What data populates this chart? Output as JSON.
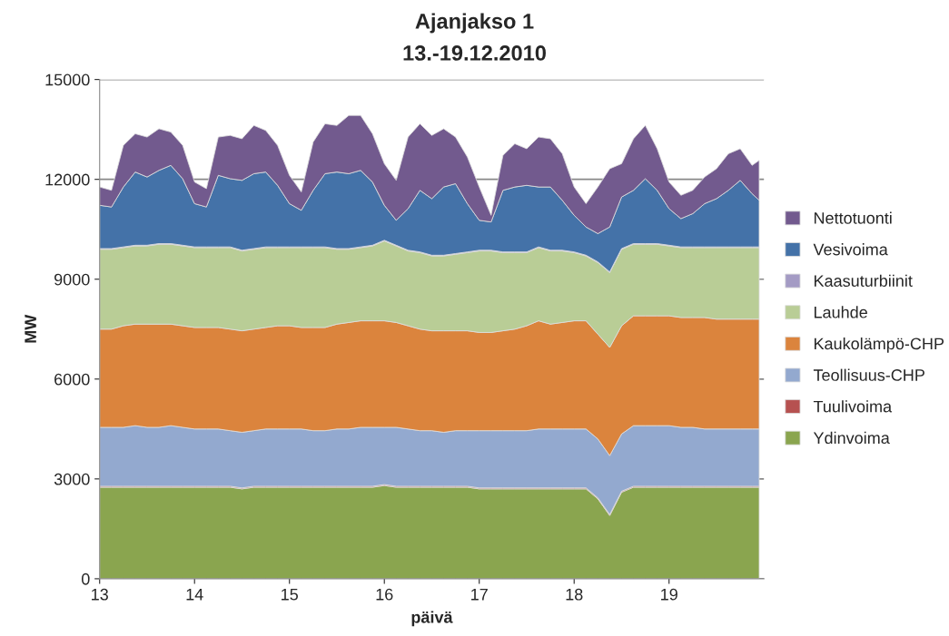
{
  "chart_data": {
    "type": "area",
    "stacked": true,
    "title": "Ajanjakso 1",
    "subtitle": "13.-19.12.2010",
    "xlabel": "päivä",
    "ylabel": "MW",
    "x": [
      13.0,
      13.125,
      13.25,
      13.375,
      13.5,
      13.625,
      13.75,
      13.875,
      14.0,
      14.125,
      14.25,
      14.375,
      14.5,
      14.625,
      14.75,
      14.875,
      15.0,
      15.125,
      15.25,
      15.375,
      15.5,
      15.625,
      15.75,
      15.875,
      16.0,
      16.125,
      16.25,
      16.375,
      16.5,
      16.625,
      16.75,
      16.875,
      17.0,
      17.125,
      17.25,
      17.375,
      17.5,
      17.625,
      17.75,
      17.875,
      18.0,
      18.125,
      18.25,
      18.375,
      18.5,
      18.625,
      18.75,
      18.875,
      19.0,
      19.125,
      19.25,
      19.375,
      19.5,
      19.625,
      19.75,
      19.875,
      19.95
    ],
    "series": [
      {
        "name": "Ydinvoima",
        "color": "#8aa54f",
        "values": [
          2750,
          2750,
          2750,
          2750,
          2750,
          2750,
          2750,
          2750,
          2750,
          2750,
          2750,
          2750,
          2700,
          2750,
          2750,
          2750,
          2750,
          2750,
          2750,
          2750,
          2750,
          2750,
          2750,
          2750,
          2800,
          2750,
          2750,
          2750,
          2750,
          2750,
          2750,
          2750,
          2700,
          2700,
          2700,
          2700,
          2700,
          2700,
          2700,
          2700,
          2700,
          2700,
          2400,
          1900,
          2600,
          2750,
          2750,
          2750,
          2750,
          2750,
          2750,
          2750,
          2750,
          2750,
          2750,
          2750,
          2750
        ]
      },
      {
        "name": "Tuulivoima",
        "color": "#b65150",
        "values": [
          30,
          30,
          30,
          30,
          30,
          30,
          30,
          30,
          30,
          30,
          30,
          30,
          30,
          30,
          30,
          30,
          30,
          30,
          30,
          30,
          30,
          30,
          30,
          30,
          30,
          30,
          30,
          30,
          30,
          30,
          30,
          30,
          30,
          30,
          30,
          30,
          30,
          30,
          30,
          30,
          30,
          30,
          30,
          30,
          30,
          30,
          30,
          30,
          30,
          30,
          30,
          30,
          30,
          30,
          30,
          30,
          30
        ]
      },
      {
        "name": "Teollisuus-CHP",
        "color": "#93a9cf",
        "values": [
          1770,
          1770,
          1770,
          1820,
          1770,
          1770,
          1820,
          1770,
          1720,
          1720,
          1720,
          1670,
          1670,
          1670,
          1720,
          1720,
          1720,
          1720,
          1670,
          1670,
          1720,
          1720,
          1770,
          1770,
          1720,
          1770,
          1720,
          1670,
          1670,
          1620,
          1670,
          1670,
          1720,
          1720,
          1720,
          1720,
          1720,
          1770,
          1770,
          1770,
          1770,
          1770,
          1770,
          1770,
          1720,
          1820,
          1820,
          1820,
          1820,
          1770,
          1770,
          1720,
          1720,
          1720,
          1720,
          1720,
          1720
        ]
      },
      {
        "name": "Kaukolämpö-CHP",
        "color": "#db843d",
        "values": [
          2950,
          2950,
          3050,
          3050,
          3100,
          3100,
          3050,
          3050,
          3050,
          3050,
          3050,
          3050,
          3050,
          3050,
          3050,
          3100,
          3100,
          3050,
          3100,
          3100,
          3150,
          3200,
          3200,
          3200,
          3200,
          3150,
          3100,
          3050,
          3000,
          3050,
          3000,
          3000,
          2950,
          2950,
          3000,
          3050,
          3150,
          3250,
          3150,
          3200,
          3250,
          3250,
          3150,
          3250,
          3250,
          3300,
          3300,
          3300,
          3300,
          3300,
          3300,
          3350,
          3300,
          3300,
          3300,
          3300,
          3300
        ]
      },
      {
        "name": "Lauhde",
        "color": "#b9cd96",
        "values": [
          2400,
          2400,
          2350,
          2350,
          2350,
          2400,
          2400,
          2400,
          2400,
          2400,
          2400,
          2450,
          2400,
          2400,
          2400,
          2350,
          2350,
          2400,
          2400,
          2400,
          2250,
          2200,
          2200,
          2250,
          2400,
          2300,
          2250,
          2300,
          2250,
          2250,
          2300,
          2350,
          2450,
          2450,
          2350,
          2300,
          2200,
          2200,
          2200,
          2150,
          2050,
          1950,
          2150,
          2250,
          2300,
          2150,
          2150,
          2150,
          2100,
          2100,
          2100,
          2100,
          2150,
          2150,
          2150,
          2150,
          2150
        ]
      },
      {
        "name": "Kaasuturbiinit",
        "color": "#a49bc4",
        "values": [
          20,
          20,
          20,
          20,
          20,
          20,
          20,
          20,
          20,
          20,
          20,
          20,
          20,
          20,
          20,
          20,
          20,
          20,
          20,
          20,
          20,
          20,
          20,
          20,
          20,
          20,
          20,
          20,
          20,
          20,
          20,
          20,
          20,
          20,
          20,
          20,
          20,
          20,
          20,
          20,
          20,
          20,
          20,
          20,
          20,
          20,
          20,
          20,
          20,
          20,
          20,
          20,
          20,
          20,
          20,
          20,
          20
        ]
      },
      {
        "name": "Vesivoima",
        "color": "#4472a8",
        "values": [
          1300,
          1250,
          1800,
          2200,
          2050,
          2200,
          2350,
          2000,
          1300,
          1200,
          2150,
          2050,
          2100,
          2250,
          2250,
          1850,
          1300,
          1100,
          1700,
          2200,
          2300,
          2250,
          2300,
          1900,
          1050,
          750,
          1250,
          1850,
          1700,
          2050,
          2100,
          1450,
          900,
          850,
          1850,
          1950,
          2000,
          1800,
          1900,
          1500,
          1100,
          850,
          850,
          1350,
          1550,
          1600,
          1950,
          1600,
          1100,
          850,
          1000,
          1300,
          1450,
          1700,
          2000,
          1600,
          1400
        ]
      },
      {
        "name": "Nettotuonti",
        "color": "#725a8e",
        "values": [
          550,
          500,
          1250,
          1150,
          1200,
          1250,
          1000,
          1000,
          650,
          550,
          1150,
          1300,
          1250,
          1450,
          1250,
          1200,
          850,
          550,
          1450,
          1500,
          1400,
          1750,
          1650,
          1450,
          1250,
          1200,
          2150,
          2000,
          1900,
          1750,
          1400,
          1400,
          1000,
          200,
          1050,
          1300,
          1100,
          1500,
          1450,
          1400,
          850,
          700,
          1400,
          1750,
          1000,
          1550,
          1600,
          1250,
          800,
          700,
          700,
          800,
          900,
          1100,
          950,
          850,
          1200
        ]
      }
    ],
    "xlim": [
      13,
      20
    ],
    "xticks": [
      13,
      14,
      15,
      16,
      17,
      18,
      19
    ],
    "ylim": [
      0,
      15000
    ],
    "yticks": [
      0,
      3000,
      6000,
      9000,
      12000,
      15000
    ],
    "grid": "y",
    "legend": "right"
  }
}
